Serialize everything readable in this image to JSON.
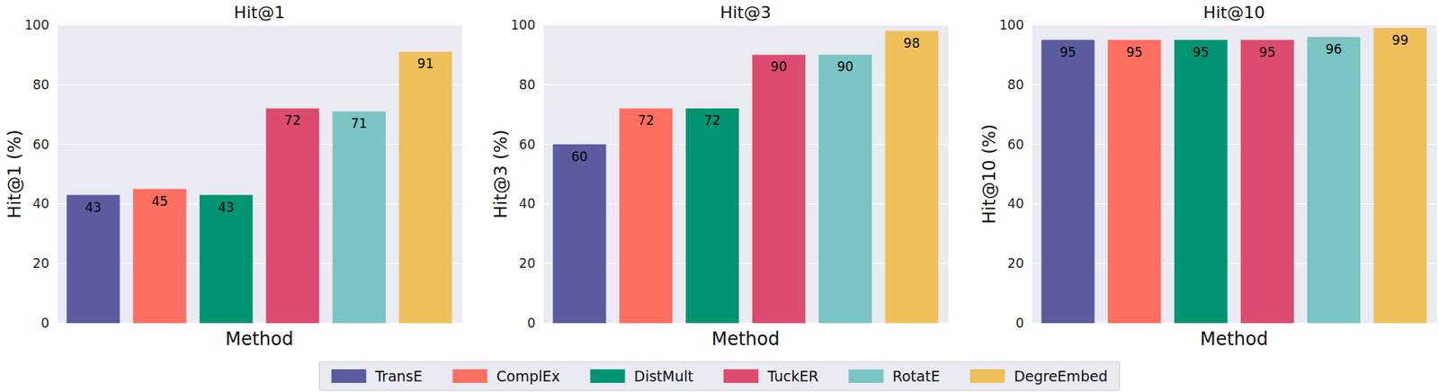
{
  "chart_data": [
    {
      "type": "bar",
      "title": "Hit@1",
      "x_label": "Method",
      "y_label": "Hit@1 (%)",
      "categories": [
        "TransE",
        "ComplEx",
        "DistMult",
        "TuckER",
        "RotatE",
        "DegreEmbed"
      ],
      "values": [
        43,
        45,
        43,
        72,
        71,
        91
      ],
      "colors": [
        "#5b5ba0",
        "#ff6f61",
        "#009473",
        "#dd4b6e",
        "#7bc4c4",
        "#efc05a"
      ],
      "ylim": [
        0,
        100
      ],
      "yticks": [
        0,
        20,
        40,
        60,
        80,
        100
      ],
      "grid": true,
      "data_labels": true,
      "tick_labels": "y",
      "legend": "bottom"
    },
    {
      "type": "bar",
      "title": "Hit@3",
      "x_label": "Method",
      "y_label": "Hit@3 (%)",
      "categories": [
        "TransE",
        "ComplEx",
        "DistMult",
        "TuckER",
        "RotatE",
        "DegreEmbed"
      ],
      "values": [
        60,
        72,
        72,
        90,
        90,
        98
      ],
      "colors": [
        "#5b5ba0",
        "#ff6f61",
        "#009473",
        "#dd4b6e",
        "#7bc4c4",
        "#efc05a"
      ],
      "ylim": [
        0,
        100
      ],
      "yticks": [
        0,
        20,
        40,
        60,
        80,
        100
      ],
      "grid": true,
      "data_labels": true,
      "tick_labels": "y"
    },
    {
      "type": "bar",
      "title": "Hit@10",
      "x_label": "Method",
      "y_label": "Hit@10 (%)",
      "categories": [
        "TransE",
        "ComplEx",
        "DistMult",
        "TuckER",
        "RotatE",
        "DegreEmbed"
      ],
      "values": [
        95,
        95,
        95,
        95,
        96,
        99
      ],
      "colors": [
        "#5b5ba0",
        "#ff6f61",
        "#009473",
        "#dd4b6e",
        "#7bc4c4",
        "#efc05a"
      ],
      "ylim": [
        0,
        100
      ],
      "yticks": [
        0,
        20,
        40,
        60,
        80,
        100
      ],
      "grid": true,
      "data_labels": true,
      "tick_labels": "y"
    }
  ]
}
